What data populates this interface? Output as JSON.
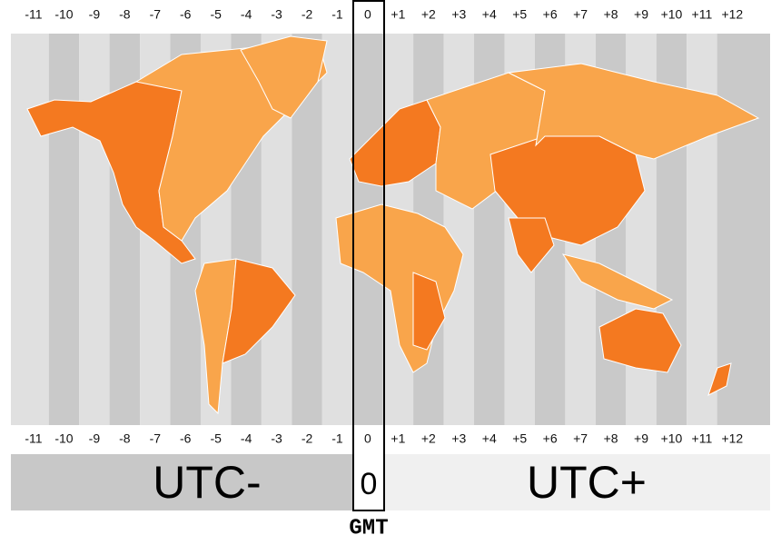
{
  "zones_top": [
    "-11",
    "-10",
    "-9",
    "-8",
    "-7",
    "-6",
    "-5",
    "-4",
    "-3",
    "-2",
    "-1",
    "0",
    "+1",
    "+2",
    "+3",
    "+4",
    "+5",
    "+6",
    "+7",
    "+8",
    "+9",
    "+10",
    "+11",
    "+12"
  ],
  "zones_bottom": [
    "-11",
    "-10",
    "-9",
    "-8",
    "-7",
    "-6",
    "-5",
    "-4",
    "-3",
    "-2",
    "-1",
    "0",
    "+1",
    "+2",
    "+3",
    "+4",
    "+5",
    "+6",
    "+7",
    "+8",
    "+9",
    "+10",
    "+11",
    "+12"
  ],
  "footer": {
    "left": "UTC-",
    "center": "0",
    "right": "UTC+",
    "caption": "GMT"
  }
}
